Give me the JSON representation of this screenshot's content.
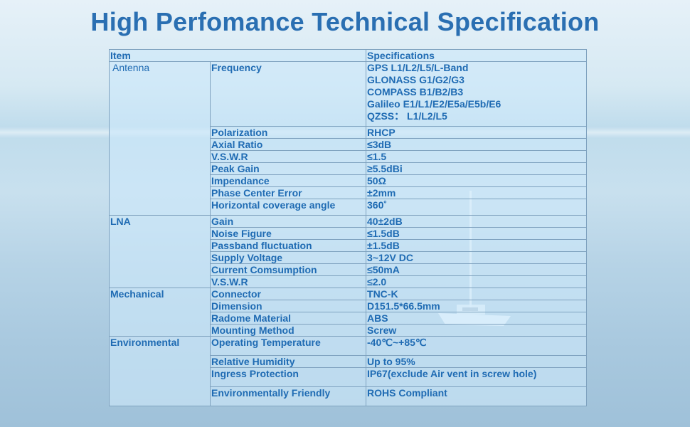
{
  "title": "High Perfomance Technical Specification",
  "header": {
    "item": "Item",
    "specifications": "Specifications"
  },
  "antenna": {
    "label": "Antenna",
    "frequency_label": "Frequency",
    "frequency_values": [
      "GPS L1/L2/L5/L-Band",
      "GLONASS G1/G2/G3",
      "COMPASS B1/B2/B3",
      "Galileo E1/L1/E2/E5a/E5b/E6",
      "QZSS： L1/L2/L5"
    ],
    "rows": [
      {
        "name": "Polarization",
        "value": "RHCP"
      },
      {
        "name": "Axial Ratio",
        "value": "≤3dB"
      },
      {
        "name": "V.S.W.R",
        "value": "≤1.5"
      },
      {
        "name": "Peak Gain",
        "value": "≥5.5dBi"
      },
      {
        "name": "Impendance",
        "value": "50Ω"
      },
      {
        "name": "Phase Center Error",
        "value": "±2mm"
      },
      {
        "name": "Horizontal coverage angle",
        "value": "360˚"
      }
    ]
  },
  "lna": {
    "label": "LNA",
    "rows": [
      {
        "name": "Gain",
        "value": "40±2dB"
      },
      {
        "name": "Noise Figure",
        "value": "≤1.5dB"
      },
      {
        "name": "Passband fluctuation",
        "value": "±1.5dB"
      },
      {
        "name": "Supply Voltage",
        "value": "3~12V DC"
      },
      {
        "name": "Current Comsumption",
        "value": "≤50mA"
      },
      {
        "name": "V.S.W.R",
        "value": "≤2.0"
      }
    ]
  },
  "mechanical": {
    "label": "Mechanical",
    "rows": [
      {
        "name": "Connector",
        "value": "TNC-K"
      },
      {
        "name": "Dimension",
        "value": "D151.5*66.5mm"
      },
      {
        "name": "Radome Material",
        "value": "ABS"
      },
      {
        "name": "Mounting Method",
        "value": "Screw"
      }
    ]
  },
  "environmental": {
    "label": "Environmental",
    "rows": [
      {
        "name": "Operating Temperature",
        "value": "-40℃~+85℃"
      },
      {
        "name": "Relative Humidity",
        "value": "Up to 95%"
      },
      {
        "name": "Ingress Protection",
        "value": "IP67(exclude Air vent in screw hole)"
      },
      {
        "name": "Environmentally Friendly",
        "value": "ROHS Compliant"
      }
    ]
  }
}
